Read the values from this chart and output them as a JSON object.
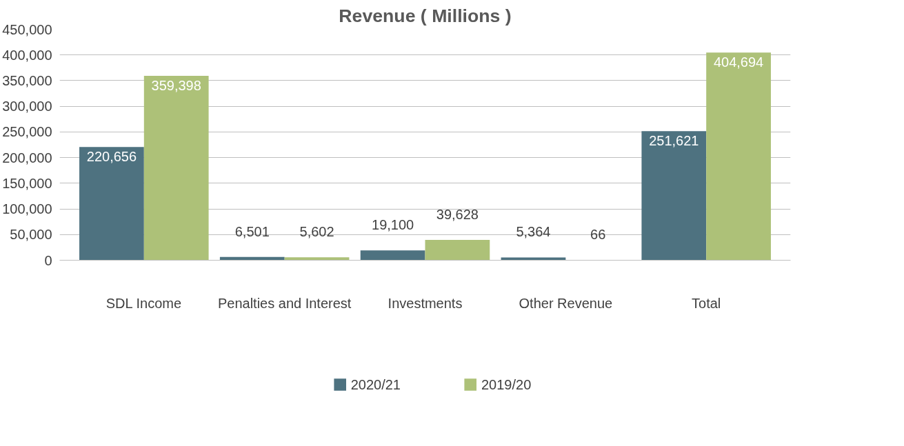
{
  "chart_data": {
    "type": "bar",
    "title": "Revenue ( Millions )",
    "categories": [
      "SDL Income",
      "Penalties and Interest",
      "Investments",
      "Other Revenue",
      "Total"
    ],
    "series": [
      {
        "name": "2020/21",
        "color": "#4e7280",
        "values": [
          220656,
          6501,
          19100,
          5364,
          251621
        ],
        "value_labels": [
          "220,656",
          "6,501",
          "19,100",
          "5,364",
          "251,621"
        ]
      },
      {
        "name": "2019/20",
        "color": "#adc178",
        "values": [
          359398,
          5602,
          39628,
          66,
          404694
        ],
        "value_labels": [
          "359,398",
          "5,602",
          "39,628",
          "66",
          "404,694"
        ]
      }
    ],
    "ylim": [
      0,
      450000
    ],
    "yticks": [
      {
        "value": 0,
        "label": "0"
      },
      {
        "value": 50000,
        "label": "50,000"
      },
      {
        "value": 100000,
        "label": "100,000"
      },
      {
        "value": 150000,
        "label": "150,000"
      },
      {
        "value": 200000,
        "label": "200,000"
      },
      {
        "value": 250000,
        "label": "250,000"
      },
      {
        "value": 300000,
        "label": "300,000"
      },
      {
        "value": 350000,
        "label": "350,000"
      },
      {
        "value": 400000,
        "label": "400,000"
      },
      {
        "value": 450000,
        "label": "450,000"
      }
    ],
    "grid": "y",
    "legend": "bottom"
  }
}
